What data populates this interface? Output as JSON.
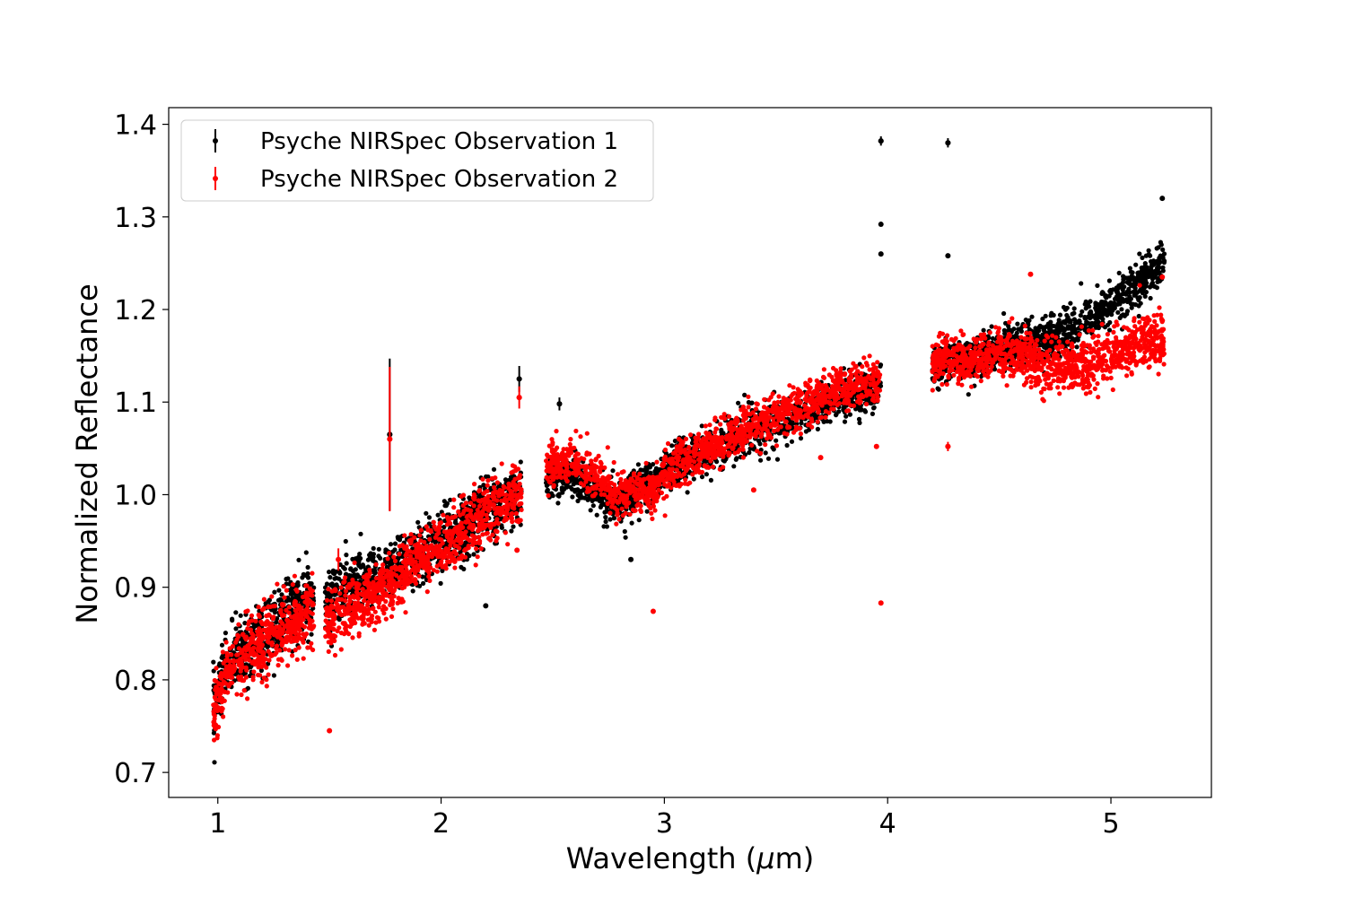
{
  "chart_data": {
    "type": "scatter",
    "title": "",
    "xlabel": "Wavelength (",
    "xlabel_mu": "μ",
    "xlabel_unit": "m)",
    "ylabel": "Normalized Reflectance",
    "xlim": [
      0.78,
      5.45
    ],
    "ylim": [
      0.673,
      1.418
    ],
    "x_ticks": [
      1,
      2,
      3,
      4,
      5
    ],
    "x_tick_labels": [
      "1",
      "2",
      "3",
      "4",
      "5"
    ],
    "y_ticks": [
      0.7,
      0.8,
      0.9,
      1.0,
      1.1,
      1.2,
      1.3,
      1.4
    ],
    "y_tick_labels": [
      "0.7",
      "0.8",
      "0.9",
      "1.0",
      "1.1",
      "1.2",
      "1.3",
      "1.4"
    ],
    "grid": false,
    "legend_position": "top-left",
    "series": [
      {
        "name": "Psyche NIRSpec Observation 1",
        "color": "#000000",
        "profile": [
          [
            0.98,
            0.77
          ],
          [
            1.05,
            0.82
          ],
          [
            1.2,
            0.845
          ],
          [
            1.3,
            0.868
          ],
          [
            1.42,
            0.89
          ],
          [
            1.48,
            0.885
          ],
          [
            1.6,
            0.905
          ],
          [
            1.8,
            0.915
          ],
          [
            1.9,
            0.935
          ],
          [
            2.0,
            0.95
          ],
          [
            2.1,
            0.965
          ],
          [
            2.2,
            0.985
          ],
          [
            2.35,
            1.0
          ],
          [
            2.48,
            1.02
          ],
          [
            2.6,
            1.02
          ],
          [
            2.7,
            1.0
          ],
          [
            2.8,
            0.99
          ],
          [
            2.95,
            1.015
          ],
          [
            3.05,
            1.035
          ],
          [
            3.2,
            1.045
          ],
          [
            3.4,
            1.07
          ],
          [
            3.6,
            1.085
          ],
          [
            3.8,
            1.105
          ],
          [
            3.97,
            1.115
          ],
          [
            4.2,
            1.14
          ],
          [
            4.35,
            1.145
          ],
          [
            4.5,
            1.155
          ],
          [
            4.7,
            1.165
          ],
          [
            4.85,
            1.18
          ],
          [
            5.0,
            1.205
          ],
          [
            5.1,
            1.225
          ],
          [
            5.23,
            1.25
          ]
        ],
        "outliers": [
          [
            1.77,
            1.065
          ],
          [
            2.35,
            1.125
          ],
          [
            2.53,
            1.098
          ],
          [
            2.85,
            0.93
          ],
          [
            3.97,
            1.382
          ],
          [
            3.97,
            1.292
          ],
          [
            3.97,
            1.26
          ],
          [
            4.27,
            1.38
          ],
          [
            4.27,
            1.258
          ],
          [
            5.23,
            1.32
          ],
          [
            2.2,
            0.88
          ]
        ],
        "error_bars": [
          [
            1.77,
            1.065,
            0.082
          ],
          [
            2.35,
            1.125,
            0.014
          ],
          [
            2.53,
            1.098,
            0.007
          ],
          [
            3.97,
            1.382,
            0.005
          ],
          [
            4.27,
            1.38,
            0.005
          ]
        ]
      },
      {
        "name": "Psyche NIRSpec Observation 2",
        "color": "#ff0000",
        "profile": [
          [
            0.98,
            0.76
          ],
          [
            1.05,
            0.815
          ],
          [
            1.2,
            0.84
          ],
          [
            1.3,
            0.855
          ],
          [
            1.42,
            0.875
          ],
          [
            1.48,
            0.86
          ],
          [
            1.6,
            0.88
          ],
          [
            1.8,
            0.905
          ],
          [
            1.9,
            0.93
          ],
          [
            2.0,
            0.945
          ],
          [
            2.1,
            0.96
          ],
          [
            2.2,
            0.98
          ],
          [
            2.35,
            1.0
          ],
          [
            2.48,
            1.03
          ],
          [
            2.6,
            1.04
          ],
          [
            2.7,
            1.015
          ],
          [
            2.8,
            1.0
          ],
          [
            2.95,
            1.005
          ],
          [
            3.05,
            1.03
          ],
          [
            3.2,
            1.05
          ],
          [
            3.4,
            1.075
          ],
          [
            3.6,
            1.095
          ],
          [
            3.8,
            1.115
          ],
          [
            3.97,
            1.12
          ],
          [
            4.2,
            1.14
          ],
          [
            4.35,
            1.145
          ],
          [
            4.5,
            1.155
          ],
          [
            4.6,
            1.15
          ],
          [
            4.7,
            1.135
          ],
          [
            4.85,
            1.14
          ],
          [
            5.0,
            1.15
          ],
          [
            5.1,
            1.165
          ],
          [
            5.23,
            1.17
          ]
        ],
        "outliers": [
          [
            1.77,
            1.06
          ],
          [
            2.35,
            1.105
          ],
          [
            2.95,
            0.874
          ],
          [
            3.97,
            0.883
          ],
          [
            3.95,
            1.052
          ],
          [
            4.27,
            1.052
          ],
          [
            4.64,
            1.238
          ],
          [
            1.5,
            0.745
          ],
          [
            2.34,
            0.94
          ],
          [
            3.7,
            1.04
          ],
          [
            3.4,
            1.005
          ],
          [
            5.23,
            1.235
          ]
        ],
        "error_bars": [
          [
            1.77,
            1.06,
            0.078
          ],
          [
            2.35,
            1.105,
            0.012
          ],
          [
            1.54,
            0.93,
            0.012
          ],
          [
            4.27,
            1.052,
            0.005
          ]
        ]
      }
    ]
  }
}
